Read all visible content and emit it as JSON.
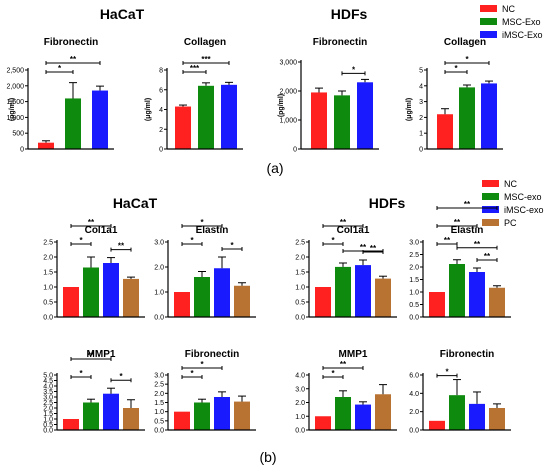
{
  "figure": {
    "group_titles": {
      "a_left": "HaCaT",
      "a_right": "HDFs",
      "b_left": "HaCaT",
      "b_right": "HDFs"
    },
    "panel_labels": {
      "a": "(a)",
      "b": "(b)"
    },
    "legend_a": [
      {
        "label": "NC",
        "color": "#ff2020"
      },
      {
        "label": "MSC-Exo",
        "color": "#0e8a0e"
      },
      {
        "label": "iMSC-Exo",
        "color": "#1a1aff"
      }
    ],
    "legend_b": [
      {
        "label": "NC",
        "color": "#ff2020"
      },
      {
        "label": "MSC-exo",
        "color": "#0e8a0e"
      },
      {
        "label": "iMSC-exo",
        "color": "#1a1aff"
      },
      {
        "label": "PC",
        "color": "#b87333"
      }
    ]
  },
  "chart_data": [
    {
      "type": "bar",
      "title": "Fibronectin",
      "ylabel": "(pg/ml)",
      "categories": [
        "NC",
        "MSC-Exo",
        "iMSC-Exo"
      ],
      "values": [
        200,
        1600,
        1850
      ],
      "errors": [
        60,
        500,
        140
      ],
      "ylim": [
        0,
        2500
      ],
      "yticks": [
        "0",
        "500",
        "1,000",
        "1,500",
        "2,000",
        "2,500"
      ],
      "significance": [
        {
          "from": 0,
          "to": 1,
          "label": "*"
        },
        {
          "from": 0,
          "to": 2,
          "label": "**"
        }
      ]
    },
    {
      "type": "bar",
      "title": "Collagen",
      "ylabel": "(μg/ml)",
      "categories": [
        "NC",
        "MSC-Exo",
        "iMSC-Exo"
      ],
      "values": [
        4.3,
        6.4,
        6.5
      ],
      "errors": [
        0.15,
        0.3,
        0.25
      ],
      "ylim": [
        0,
        8
      ],
      "yticks": [
        "0",
        "2",
        "4",
        "6",
        "8"
      ],
      "significance": [
        {
          "from": 0,
          "to": 1,
          "label": "***"
        },
        {
          "from": 0,
          "to": 2,
          "label": "***"
        }
      ]
    },
    {
      "type": "bar",
      "title": "Fibronectin",
      "ylabel": "(pg/ml)",
      "categories": [
        "NC",
        "MSC-Exo",
        "iMSC-Exo"
      ],
      "values": [
        1950,
        1850,
        2300
      ],
      "errors": [
        150,
        150,
        100
      ],
      "ylim": [
        0,
        3000
      ],
      "yticks": [
        "0",
        "1,000",
        "2,000",
        "3,000"
      ],
      "significance": [
        {
          "from": 1,
          "to": 2,
          "label": "*"
        }
      ]
    },
    {
      "type": "bar",
      "title": "Collagen",
      "ylabel": "(μg/ml)",
      "categories": [
        "NC",
        "MSC-Exo",
        "iMSC-Exo"
      ],
      "values": [
        2.2,
        3.9,
        4.15
      ],
      "errors": [
        0.35,
        0.15,
        0.15
      ],
      "ylim": [
        0,
        5
      ],
      "yticks": [
        "0",
        "1",
        "2",
        "3",
        "4",
        "5"
      ],
      "significance": [
        {
          "from": 0,
          "to": 1,
          "label": "*"
        },
        {
          "from": 0,
          "to": 2,
          "label": "*"
        }
      ]
    },
    {
      "type": "bar",
      "title": "Col1a1",
      "categories": [
        "NC",
        "MSC-exo",
        "iMSC-exo",
        "PC"
      ],
      "values": [
        1.0,
        1.65,
        1.8,
        1.27
      ],
      "errors": [
        0.0,
        0.35,
        0.18,
        0.06
      ],
      "ylim": [
        0,
        2.5
      ],
      "yticks": [
        "0.0",
        "0.5",
        "1.0",
        "1.5",
        "2.0",
        "2.5"
      ],
      "significance": [
        {
          "from": 0,
          "to": 1,
          "label": "*"
        },
        {
          "from": 0,
          "to": 2,
          "label": "**"
        },
        {
          "from": 2,
          "to": 3,
          "label": "**"
        }
      ]
    },
    {
      "type": "bar",
      "title": "Elastin",
      "categories": [
        "NC",
        "MSC-exo",
        "iMSC-exo",
        "PC"
      ],
      "values": [
        1.0,
        1.6,
        1.95,
        1.25
      ],
      "errors": [
        0.0,
        0.22,
        0.45,
        0.12
      ],
      "ylim": [
        0,
        3.0
      ],
      "yticks": [
        "0.0",
        "1.0",
        "2.0",
        "3.0"
      ],
      "significance": [
        {
          "from": 0,
          "to": 1,
          "label": "*"
        },
        {
          "from": 0,
          "to": 2,
          "label": "*"
        },
        {
          "from": 2,
          "to": 3,
          "label": "*"
        }
      ]
    },
    {
      "type": "bar",
      "title": "Col1a1",
      "categories": [
        "NC",
        "MSC-exo",
        "iMSC-exo",
        "PC"
      ],
      "values": [
        1.0,
        1.67,
        1.73,
        1.28
      ],
      "errors": [
        0.0,
        0.13,
        0.17,
        0.08
      ],
      "ylim": [
        0,
        2.5
      ],
      "yticks": [
        "0.0",
        "0.5",
        "1.0",
        "1.5",
        "2.0",
        "2.5"
      ],
      "significance": [
        {
          "from": 0,
          "to": 1,
          "label": "*"
        },
        {
          "from": 0,
          "to": 2,
          "label": "**"
        },
        {
          "from": 1,
          "to": 3,
          "label": "**"
        },
        {
          "from": 2,
          "to": 3,
          "label": "**"
        }
      ]
    },
    {
      "type": "bar",
      "title": "Elastin",
      "categories": [
        "NC",
        "MSC-exo",
        "iMSC-exo",
        "PC"
      ],
      "values": [
        1.0,
        2.12,
        1.8,
        1.17
      ],
      "errors": [
        0.0,
        0.17,
        0.16,
        0.08
      ],
      "ylim": [
        0,
        3.0
      ],
      "yticks": [
        "0.0",
        "0.5",
        "1.0",
        "1.5",
        "2.0",
        "2.5",
        "3.0"
      ],
      "significance": [
        {
          "from": 0,
          "to": 1,
          "label": "**"
        },
        {
          "from": 0,
          "to": 2,
          "label": "**"
        },
        {
          "from": 0,
          "to": 3,
          "label": "**"
        },
        {
          "from": 1,
          "to": 3,
          "label": "**"
        },
        {
          "from": 2,
          "to": 3,
          "label": "**"
        }
      ]
    },
    {
      "type": "bar",
      "title": "MMP1",
      "categories": [
        "NC",
        "MSC-exo",
        "iMSC-exo",
        "PC"
      ],
      "values": [
        1.0,
        2.5,
        3.3,
        2.0
      ],
      "errors": [
        0.0,
        0.3,
        0.5,
        0.75
      ],
      "ylim": [
        0,
        5.0
      ],
      "yticks": [
        "0.0",
        "0.5",
        "1.0",
        "1.5",
        "2.0",
        "2.5",
        "3.0",
        "3.5",
        "4.0",
        "4.5",
        "5.0"
      ],
      "significance": [
        {
          "from": 0,
          "to": 1,
          "label": "*"
        },
        {
          "from": 0,
          "to": 2,
          "label": "**"
        },
        {
          "from": 2,
          "to": 3,
          "label": "*"
        }
      ]
    },
    {
      "type": "bar",
      "title": "Fibronectin",
      "categories": [
        "NC",
        "MSC-exo",
        "iMSC-exo",
        "PC"
      ],
      "values": [
        1.0,
        1.5,
        1.8,
        1.55
      ],
      "errors": [
        0.0,
        0.18,
        0.28,
        0.3
      ],
      "ylim": [
        0,
        3.0
      ],
      "yticks": [
        "0.0",
        "0.5",
        "1.0",
        "1.5",
        "2.0",
        "2.5",
        "3.0"
      ],
      "significance": [
        {
          "from": 0,
          "to": 1,
          "label": "*"
        },
        {
          "from": 0,
          "to": 2,
          "label": "*"
        }
      ]
    },
    {
      "type": "bar",
      "title": "MMP1",
      "categories": [
        "NC",
        "MSC-exo",
        "iMSC-exo",
        "PC"
      ],
      "values": [
        1.0,
        2.4,
        1.85,
        2.6
      ],
      "errors": [
        0.0,
        0.45,
        0.2,
        0.7
      ],
      "ylim": [
        0,
        4.0
      ],
      "yticks": [
        "0.0",
        "1.0",
        "2.0",
        "3.0",
        "4.0"
      ],
      "significance": [
        {
          "from": 0,
          "to": 1,
          "label": "*"
        },
        {
          "from": 0,
          "to": 2,
          "label": "**"
        }
      ]
    },
    {
      "type": "bar",
      "title": "Fibronectin",
      "categories": [
        "NC",
        "MSC-exo",
        "iMSC-exo",
        "PC"
      ],
      "values": [
        1.0,
        3.8,
        2.85,
        2.4
      ],
      "errors": [
        0.0,
        1.7,
        1.3,
        0.45
      ],
      "ylim": [
        0,
        6.0
      ],
      "yticks": [
        "0.0",
        "2.0",
        "4.0",
        "6.0"
      ],
      "significance": [
        {
          "from": 0,
          "to": 1,
          "label": "*"
        }
      ]
    }
  ]
}
